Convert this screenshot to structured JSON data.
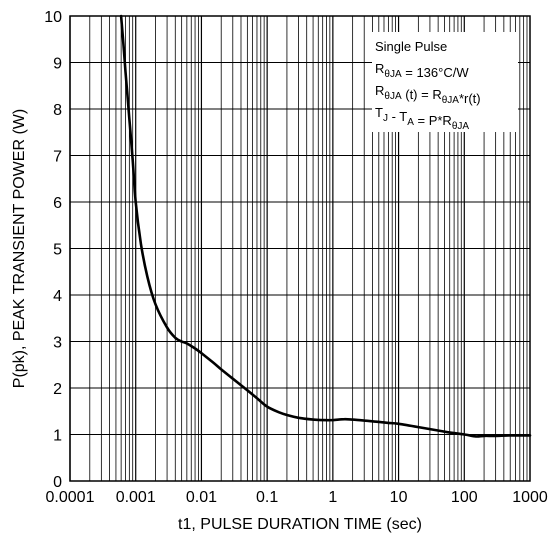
{
  "chart_data": {
    "type": "line",
    "title": "",
    "xlabel": "t1, PULSE DURATION TIME (sec)",
    "ylabel": "P(pk), PEAK TRANSIENT POWER (W)",
    "xscale": "log",
    "xlim": [
      0.0001,
      1000
    ],
    "ylim": [
      0,
      10
    ],
    "grid": true,
    "x_ticks": [
      "0.0001",
      "0.001",
      "0.01",
      "0.1",
      "1",
      "10",
      "100",
      "1000"
    ],
    "y_ticks": [
      "0",
      "1",
      "2",
      "3",
      "4",
      "5",
      "6",
      "7",
      "8",
      "9",
      "10"
    ],
    "annotation": {
      "placement": "top-right",
      "lines": [
        [
          {
            "t": "Single Pulse"
          }
        ],
        [
          {
            "t": "R"
          },
          {
            "t": "θJA",
            "sub": true
          },
          {
            "t": " = 136°C/W"
          }
        ],
        [
          {
            "t": "R"
          },
          {
            "t": "θJA",
            "sub": true
          },
          {
            "t": " (t) =  R"
          },
          {
            "t": "θJA",
            "sub": true
          },
          {
            "t": "*r(t)"
          }
        ],
        [
          {
            "t": "T"
          },
          {
            "t": "J",
            "sub": true
          },
          {
            "t": " - T"
          },
          {
            "t": "A",
            "sub": true
          },
          {
            "t": " = P*R"
          },
          {
            "t": "θJA",
            "sub": true
          }
        ]
      ]
    },
    "series": [
      {
        "x": [
          0.0006,
          0.00065,
          0.0007,
          0.0008,
          0.0009,
          0.001,
          0.0012,
          0.0015,
          0.002,
          0.003,
          0.004,
          0.005,
          0.006,
          0.008,
          0.01,
          0.015,
          0.02,
          0.03,
          0.05,
          0.07,
          0.1,
          0.15,
          0.2,
          0.3,
          0.5,
          0.7,
          1,
          1.5,
          2,
          3,
          5,
          7,
          10,
          20,
          50,
          100,
          150,
          200,
          300,
          500,
          1000
        ],
        "y": [
          10.0,
          9.4,
          8.8,
          7.8,
          6.9,
          6.0,
          5.1,
          4.4,
          3.8,
          3.3,
          3.08,
          3.0,
          2.96,
          2.85,
          2.75,
          2.55,
          2.4,
          2.2,
          1.95,
          1.78,
          1.6,
          1.48,
          1.42,
          1.36,
          1.32,
          1.31,
          1.31,
          1.33,
          1.32,
          1.3,
          1.27,
          1.25,
          1.23,
          1.16,
          1.06,
          1.0,
          0.96,
          0.97,
          0.97,
          0.98,
          0.98
        ]
      }
    ]
  }
}
